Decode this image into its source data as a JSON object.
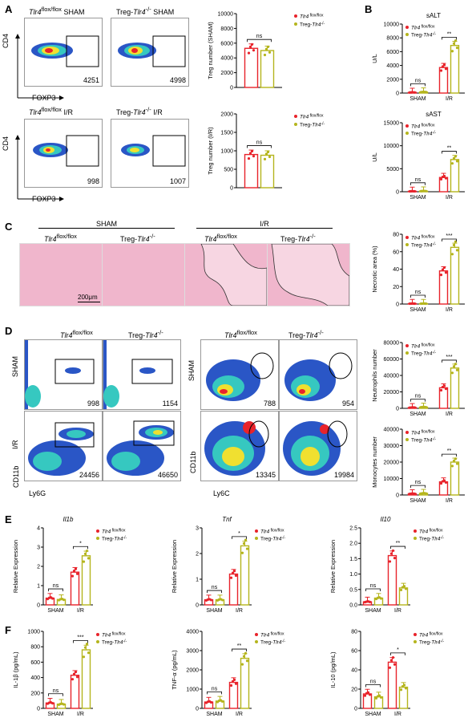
{
  "colors": {
    "ctrl": "#e8232b",
    "ko": "#b5b51d"
  },
  "legend": {
    "ctrl": "Tlr4",
    "ctrl_sup": "flox/flox",
    "ko_pre": "Treg-",
    "ko_it": "Tlr4",
    "ko_sup": "-/-"
  },
  "panels": {
    "A": "A",
    "B": "B",
    "C": "C",
    "D": "D",
    "E": "E",
    "F": "F"
  },
  "A": {
    "titles": [
      {
        "it": "Tlr4",
        "sup": "flox/flox",
        "rest": " SHAM"
      },
      {
        "pre": "Treg-",
        "it": "Tlr4",
        "sup": "-/-",
        "rest": " SHAM"
      },
      {
        "it": "Tlr4",
        "sup": "flox/flox",
        "rest": " I/R"
      },
      {
        "pre": "Treg-",
        "it": "Tlr4",
        "sup": "-/-",
        "rest": " I/R"
      }
    ],
    "counts": [
      "4251",
      "4998",
      "998",
      "1007"
    ],
    "ylabel": "CD4",
    "xlabel": "FOXP3"
  },
  "C": {
    "sham": "SHAM",
    "ir": "I/R",
    "scale": "200μm",
    "titles": [
      {
        "it": "Tlr4",
        "sup": "flox/flox"
      },
      {
        "pre": "Treg-",
        "it": "Tlr4",
        "sup": "-/-"
      },
      {
        "it": "Tlr4",
        "sup": "flox/flox"
      },
      {
        "pre": "Treg-",
        "it": "Tlr4",
        "sup": "-/-"
      }
    ]
  },
  "D": {
    "titles": [
      {
        "it": "Tlr4",
        "sup": "flox/flox"
      },
      {
        "pre": "Treg-",
        "it": "Tlr4",
        "sup": "-/-"
      },
      {
        "it": "Tlr4",
        "sup": "flox/flox"
      },
      {
        "pre": "Treg-",
        "it": "Tlr4",
        "sup": "-/-"
      }
    ],
    "rows": [
      "SHAM",
      "I/R"
    ],
    "counts_ly6g": [
      "998",
      "1154",
      "24456",
      "46650"
    ],
    "counts_ly6c": [
      "788",
      "954",
      "13345",
      "19984"
    ],
    "ylabel": "CD11b",
    "xlabel_left": "Ly6G",
    "xlabel_right": "Ly6C"
  },
  "chart_data": [
    {
      "id": "A1",
      "type": "bar",
      "categories": [
        ""
      ],
      "series": [
        {
          "values": [
            5300
          ]
        },
        {
          "values": [
            5000
          ]
        }
      ],
      "ylabel": "Treg number (SHAM)",
      "ylim": [
        0,
        10000
      ],
      "yticks": [
        "0",
        "2000",
        "4000",
        "6000",
        "8000",
        "10000"
      ],
      "sig": [
        "ns"
      ]
    },
    {
      "id": "A2",
      "type": "bar",
      "categories": [
        ""
      ],
      "series": [
        {
          "values": [
            900
          ]
        },
        {
          "values": [
            880
          ]
        }
      ],
      "ylabel": "Treg number (I/R)",
      "ylim": [
        0,
        2000
      ],
      "yticks": [
        "0",
        "500",
        "1000",
        "1500",
        "2000"
      ],
      "sig": [
        "ns"
      ]
    },
    {
      "id": "B1",
      "type": "bar",
      "title": "sALT",
      "categories": [
        "SHAM",
        "I/R"
      ],
      "series": [
        {
          "values": [
            100,
            3700
          ]
        },
        {
          "values": [
            150,
            6900
          ]
        }
      ],
      "ylabel": "U/L",
      "ylim": [
        0,
        10000
      ],
      "yticks": [
        "0",
        "2000",
        "4000",
        "6000",
        "8000",
        "10000"
      ],
      "sig": [
        "ns",
        "**"
      ]
    },
    {
      "id": "B2",
      "type": "bar",
      "title": "sAST",
      "categories": [
        "SHAM",
        "I/R"
      ],
      "series": [
        {
          "values": [
            100,
            3100
          ]
        },
        {
          "values": [
            150,
            7000
          ]
        }
      ],
      "ylabel": "U/L",
      "ylim": [
        0,
        15000
      ],
      "yticks": [
        "0",
        "5000",
        "10000",
        "15000"
      ],
      "sig": [
        "ns",
        "**"
      ]
    },
    {
      "id": "C1",
      "type": "bar",
      "categories": [
        "SHAM",
        "I/R"
      ],
      "series": [
        {
          "values": [
            0.5,
            38
          ]
        },
        {
          "values": [
            0.5,
            65
          ]
        }
      ],
      "ylabel": "Necrotic area (%)",
      "ylim": [
        0,
        80
      ],
      "yticks": [
        "0",
        "20",
        "40",
        "60",
        "80"
      ],
      "sig": [
        "ns",
        "***"
      ]
    },
    {
      "id": "D1",
      "type": "bar",
      "categories": [
        "SHAM",
        "I/R"
      ],
      "series": [
        {
          "values": [
            1000,
            25000
          ]
        },
        {
          "values": [
            1500,
            49000
          ]
        }
      ],
      "ylabel": "Neutrophils number",
      "ylim": [
        0,
        80000
      ],
      "yticks": [
        "0",
        "20000",
        "40000",
        "60000",
        "80000"
      ],
      "sig": [
        "ns",
        "***"
      ]
    },
    {
      "id": "D2",
      "type": "bar",
      "categories": [
        "SHAM",
        "I/R"
      ],
      "series": [
        {
          "values": [
            800,
            8000
          ]
        },
        {
          "values": [
            1000,
            20000
          ]
        }
      ],
      "ylabel": "Monocytes number",
      "ylim": [
        0,
        40000
      ],
      "yticks": [
        "0",
        "10000",
        "20000",
        "30000",
        "40000"
      ],
      "sig": [
        "ns",
        "**"
      ]
    },
    {
      "id": "E1",
      "type": "bar",
      "title": "Il1b",
      "categories": [
        "SHAM",
        "I/R"
      ],
      "series": [
        {
          "values": [
            0.35,
            1.7
          ]
        },
        {
          "values": [
            0.28,
            2.55
          ]
        }
      ],
      "ylabel": "Relative Expression",
      "ylim": [
        0,
        4
      ],
      "yticks": [
        "0",
        "1",
        "2",
        "3",
        "4"
      ],
      "sig": [
        "ns",
        "*"
      ]
    },
    {
      "id": "E2",
      "type": "bar",
      "title": "Tnf",
      "categories": [
        "SHAM",
        "I/R"
      ],
      "series": [
        {
          "values": [
            0.2,
            1.2
          ]
        },
        {
          "values": [
            0.2,
            2.3
          ]
        }
      ],
      "ylabel": "Relative Expression",
      "ylim": [
        0,
        3
      ],
      "yticks": [
        "0",
        "1",
        "2",
        "3"
      ],
      "sig": [
        "ns",
        "*"
      ]
    },
    {
      "id": "E3",
      "type": "bar",
      "title": "Il10",
      "categories": [
        "SHAM",
        "I/R"
      ],
      "series": [
        {
          "values": [
            0.1,
            1.6
          ]
        },
        {
          "values": [
            0.22,
            0.55
          ]
        }
      ],
      "ylabel": "Relative Expression",
      "ylim": [
        0,
        2.5
      ],
      "yticks": [
        "0.0",
        "0.5",
        "1.0",
        "1.5",
        "2.0",
        "2.5"
      ],
      "sig": [
        "ns",
        "**"
      ]
    },
    {
      "id": "F1",
      "type": "bar",
      "categories": [
        "SHAM",
        "I/R"
      ],
      "series": [
        {
          "values": [
            70,
            430
          ]
        },
        {
          "values": [
            55,
            760
          ]
        }
      ],
      "ylabel": "IL-1β (pg/mL)",
      "ylim": [
        0,
        1000
      ],
      "yticks": [
        "0",
        "200",
        "400",
        "600",
        "800",
        "1000"
      ],
      "sig": [
        "ns",
        "***"
      ]
    },
    {
      "id": "F2",
      "type": "bar",
      "categories": [
        "SHAM",
        "I/R"
      ],
      "series": [
        {
          "values": [
            330,
            1350
          ]
        },
        {
          "values": [
            380,
            2600
          ]
        }
      ],
      "ylabel": "TNF-α (pg/mL)",
      "ylim": [
        0,
        4000
      ],
      "yticks": [
        "0",
        "1000",
        "2000",
        "3000",
        "4000"
      ],
      "sig": [
        "ns",
        "**"
      ]
    },
    {
      "id": "F3",
      "type": "bar",
      "categories": [
        "SHAM",
        "I/R"
      ],
      "series": [
        {
          "values": [
            15,
            48
          ]
        },
        {
          "values": [
            12,
            22
          ]
        }
      ],
      "ylabel": "IL-10 (pg/mL)",
      "ylim": [
        0,
        80
      ],
      "yticks": [
        "0",
        "20",
        "40",
        "60",
        "80"
      ],
      "sig": [
        "ns",
        "*"
      ]
    }
  ]
}
